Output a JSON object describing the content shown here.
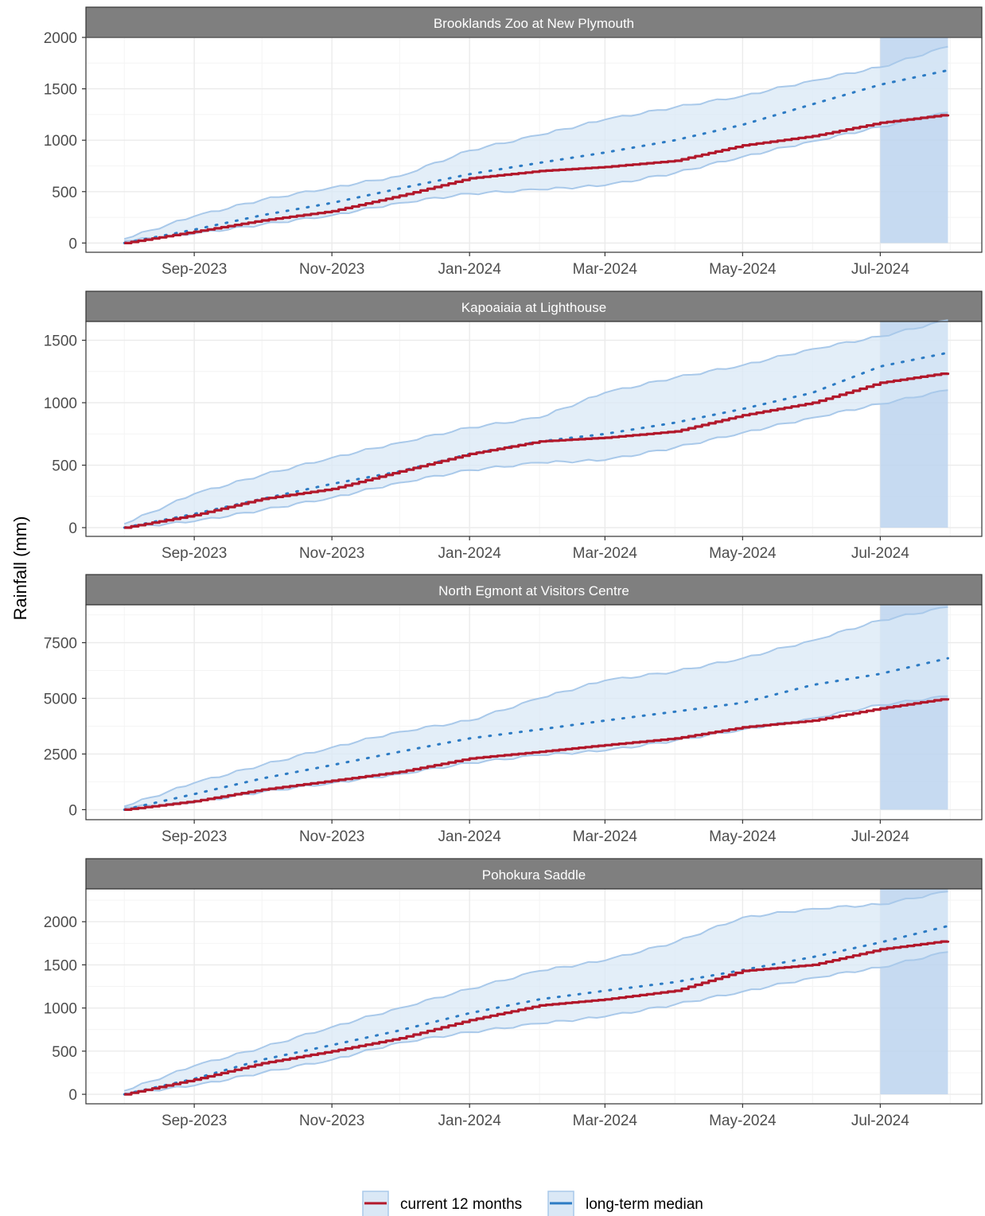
{
  "colors": {
    "strip_bg": "#7f7f7f",
    "strip_text": "#ffffff",
    "grid_major": "#ebebeb",
    "grid_minor": "#f4f4f4",
    "band_fill": "#dae8f6",
    "band_edge": "#a9c9ea",
    "recent_fill": "#bcd4ee",
    "current_line": "#b2182b",
    "median_line": "#2c7bc4",
    "panel_border": "#333333",
    "tick_text": "#4d4d4d"
  },
  "chart_data": {
    "type": "line",
    "ylabel": "Rainfall (mm)",
    "x_range": [
      "2023-07-15",
      "2024-08-15"
    ],
    "x_ticks": [
      "Sep-2023",
      "Nov-2023",
      "Jan-2024",
      "Mar-2024",
      "May-2024",
      "Jul-2024"
    ],
    "shaded_period": [
      "2024-07-01",
      "2024-07-31"
    ],
    "grid": true,
    "legend": {
      "position": "bottom",
      "entries": [
        {
          "label": "current 12 months",
          "color": "#b2182b"
        },
        {
          "label": "long-term median",
          "color": "#2c7bc4"
        }
      ]
    },
    "panels": [
      {
        "title": "Brooklands Zoo at New Plymouth",
        "y_ticks": [
          0,
          500,
          1000,
          1500,
          2000
        ],
        "y_range": [
          -90,
          2000
        ],
        "x": [
          "2023-08-01",
          "2023-09-01",
          "2023-10-01",
          "2023-11-01",
          "2023-12-01",
          "2024-01-01",
          "2024-02-01",
          "2024-03-01",
          "2024-04-01",
          "2024-05-01",
          "2024-06-01",
          "2024-07-01",
          "2024-07-31"
        ],
        "current": [
          0,
          110,
          220,
          310,
          460,
          630,
          700,
          740,
          800,
          950,
          1040,
          1170,
          1250
        ],
        "median": [
          0,
          130,
          270,
          390,
          530,
          670,
          780,
          880,
          1000,
          1150,
          1350,
          1540,
          1680
        ],
        "lower": [
          20,
          90,
          180,
          270,
          390,
          480,
          520,
          560,
          680,
          840,
          990,
          1130,
          1270
        ],
        "upper": [
          40,
          260,
          420,
          540,
          650,
          900,
          1050,
          1200,
          1320,
          1430,
          1580,
          1710,
          1910
        ]
      },
      {
        "title": "Kapoaiaia at Lighthouse",
        "y_ticks": [
          0,
          500,
          1000,
          1500
        ],
        "y_range": [
          -70,
          1650
        ],
        "x": [
          "2023-08-01",
          "2023-09-01",
          "2023-10-01",
          "2023-11-01",
          "2023-12-01",
          "2024-01-01",
          "2024-02-01",
          "2024-03-01",
          "2024-04-01",
          "2024-05-01",
          "2024-06-01",
          "2024-07-01",
          "2024-07-31"
        ],
        "current": [
          0,
          100,
          230,
          310,
          450,
          590,
          690,
          720,
          770,
          900,
          1000,
          1160,
          1240
        ],
        "median": [
          0,
          110,
          230,
          350,
          450,
          590,
          690,
          750,
          840,
          950,
          1080,
          1290,
          1400
        ],
        "lower": [
          0,
          50,
          140,
          240,
          360,
          460,
          520,
          540,
          640,
          760,
          880,
          990,
          1100
        ],
        "upper": [
          30,
          270,
          420,
          560,
          680,
          800,
          880,
          1080,
          1200,
          1300,
          1430,
          1530,
          1660
        ]
      },
      {
        "title": "North Egmont at Visitors Centre",
        "y_ticks": [
          0,
          2500,
          5000,
          7500
        ],
        "y_range": [
          -450,
          9200
        ],
        "x": [
          "2023-08-01",
          "2023-09-01",
          "2023-10-01",
          "2023-11-01",
          "2023-12-01",
          "2024-01-01",
          "2024-02-01",
          "2024-03-01",
          "2024-04-01",
          "2024-05-01",
          "2024-06-01",
          "2024-07-01",
          "2024-07-31"
        ],
        "current": [
          0,
          380,
          900,
          1300,
          1700,
          2300,
          2600,
          2900,
          3200,
          3700,
          4000,
          4550,
          5000
        ],
        "median": [
          0,
          700,
          1400,
          2000,
          2600,
          3200,
          3600,
          4000,
          4400,
          4800,
          5600,
          6100,
          6800
        ],
        "lower": [
          100,
          320,
          800,
          1200,
          1600,
          2100,
          2450,
          2650,
          3100,
          3600,
          4100,
          4700,
          5100
        ],
        "upper": [
          150,
          1200,
          2000,
          2800,
          3500,
          4000,
          5000,
          5800,
          6200,
          6800,
          7600,
          8500,
          9100
        ]
      },
      {
        "title": "Pohokura Saddle",
        "y_ticks": [
          0,
          500,
          1000,
          1500,
          2000
        ],
        "y_range": [
          -110,
          2380
        ],
        "x": [
          "2023-08-01",
          "2023-09-01",
          "2023-10-01",
          "2023-11-01",
          "2023-12-01",
          "2024-01-01",
          "2024-02-01",
          "2024-03-01",
          "2024-04-01",
          "2024-05-01",
          "2024-06-01",
          "2024-07-01",
          "2024-07-31"
        ],
        "current": [
          0,
          170,
          360,
          500,
          650,
          860,
          1030,
          1100,
          1200,
          1430,
          1500,
          1680,
          1780
        ],
        "median": [
          0,
          180,
          400,
          570,
          740,
          940,
          1100,
          1200,
          1300,
          1440,
          1590,
          1760,
          1950
        ],
        "lower": [
          10,
          100,
          250,
          400,
          600,
          720,
          820,
          900,
          1040,
          1190,
          1350,
          1470,
          1650
        ],
        "upper": [
          40,
          330,
          540,
          780,
          1000,
          1220,
          1430,
          1550,
          1760,
          2050,
          2150,
          2200,
          2350
        ]
      }
    ]
  }
}
